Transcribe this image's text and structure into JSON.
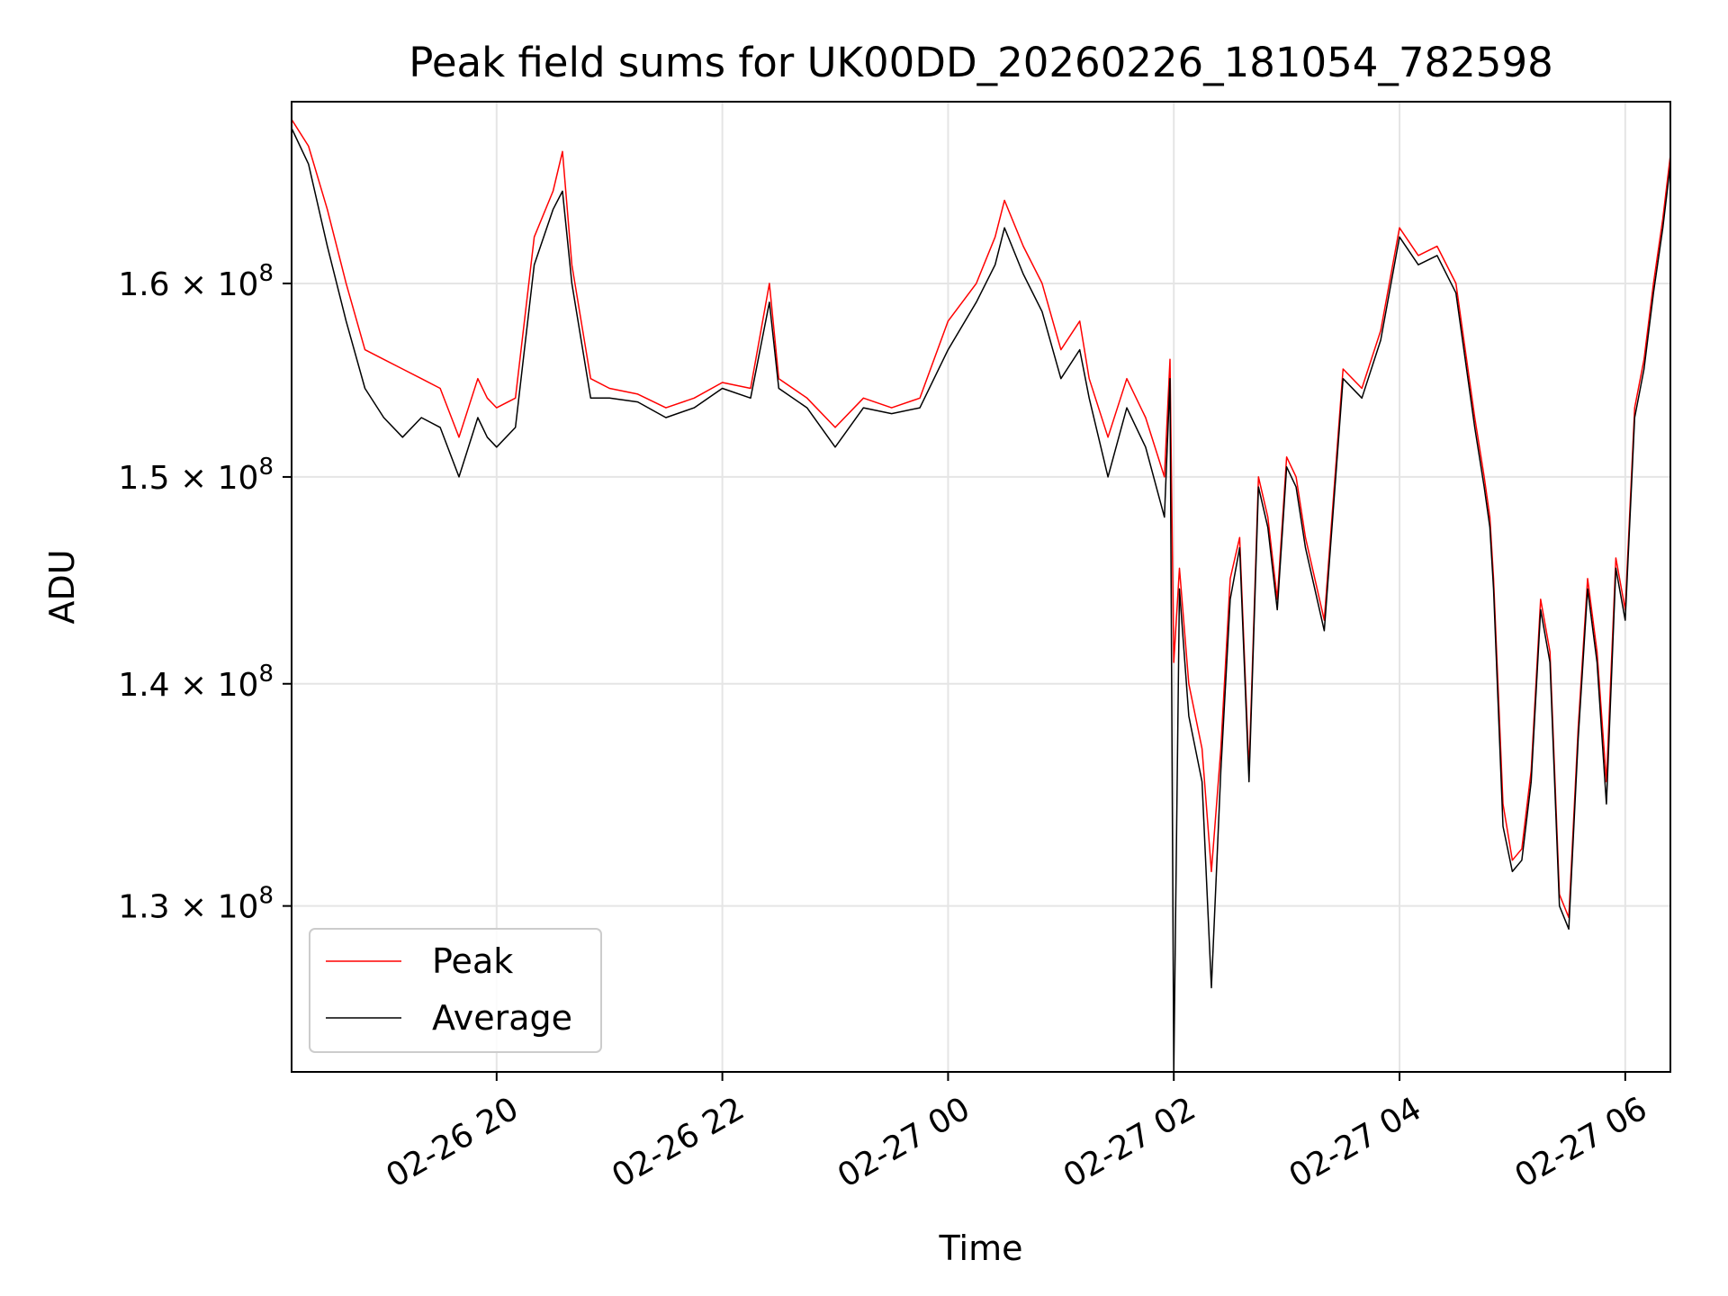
{
  "chart_data": {
    "type": "line",
    "title": "Peak field sums for UK00DD_20260226_181054_782598",
    "xlabel": "Time",
    "ylabel": "ADU",
    "y_scale": "log",
    "ylim": [
      123000000.0,
      170000000.0
    ],
    "xlim": [
      "2026-02-26 18:11",
      "2026-02-27 06:24"
    ],
    "x_ticks": [
      {
        "value": "2026-02-26 20:00",
        "label": "02-26 20"
      },
      {
        "value": "2026-02-26 22:00",
        "label": "02-26 22"
      },
      {
        "value": "2026-02-27 00:00",
        "label": "02-27 00"
      },
      {
        "value": "2026-02-27 02:00",
        "label": "02-27 02"
      },
      {
        "value": "2026-02-27 04:00",
        "label": "02-27 04"
      },
      {
        "value": "2026-02-27 06:00",
        "label": "02-27 06"
      }
    ],
    "y_ticks": [
      {
        "value": 130000000.0,
        "label_mantissa": "1.3",
        "label_exponent": "8"
      },
      {
        "value": 140000000.0,
        "label_mantissa": "1.4",
        "label_exponent": "8"
      },
      {
        "value": 150000000.0,
        "label_mantissa": "1.5",
        "label_exponent": "8"
      },
      {
        "value": 160000000.0,
        "label_mantissa": "1.6",
        "label_exponent": "8"
      }
    ],
    "grid": true,
    "legend_position": "lower-left",
    "series": [
      {
        "name": "Peak",
        "color": "#ff0000",
        "x": [
          "2026-02-26 18:11",
          "2026-02-26 18:20",
          "2026-02-26 18:30",
          "2026-02-26 18:40",
          "2026-02-26 18:50",
          "2026-02-26 19:00",
          "2026-02-26 19:10",
          "2026-02-26 19:20",
          "2026-02-26 19:30",
          "2026-02-26 19:40",
          "2026-02-26 19:50",
          "2026-02-26 19:55",
          "2026-02-26 20:00",
          "2026-02-26 20:10",
          "2026-02-26 20:20",
          "2026-02-26 20:30",
          "2026-02-26 20:35",
          "2026-02-26 20:40",
          "2026-02-26 20:50",
          "2026-02-26 21:00",
          "2026-02-26 21:15",
          "2026-02-26 21:30",
          "2026-02-26 21:45",
          "2026-02-26 22:00",
          "2026-02-26 22:15",
          "2026-02-26 22:25",
          "2026-02-26 22:30",
          "2026-02-26 22:45",
          "2026-02-26 23:00",
          "2026-02-26 23:15",
          "2026-02-26 23:30",
          "2026-02-26 23:45",
          "2026-02-27 00:00",
          "2026-02-27 00:15",
          "2026-02-27 00:25",
          "2026-02-27 00:30",
          "2026-02-27 00:40",
          "2026-02-27 00:50",
          "2026-02-27 01:00",
          "2026-02-27 01:10",
          "2026-02-27 01:15",
          "2026-02-27 01:25",
          "2026-02-27 01:35",
          "2026-02-27 01:45",
          "2026-02-27 01:55",
          "2026-02-27 01:58",
          "2026-02-27 02:00",
          "2026-02-27 02:03",
          "2026-02-27 02:08",
          "2026-02-27 02:15",
          "2026-02-27 02:20",
          "2026-02-27 02:25",
          "2026-02-27 02:30",
          "2026-02-27 02:35",
          "2026-02-27 02:40",
          "2026-02-27 02:45",
          "2026-02-27 02:50",
          "2026-02-27 02:55",
          "2026-02-27 03:00",
          "2026-02-27 03:05",
          "2026-02-27 03:10",
          "2026-02-27 03:20",
          "2026-02-27 03:30",
          "2026-02-27 03:40",
          "2026-02-27 03:50",
          "2026-02-27 04:00",
          "2026-02-27 04:10",
          "2026-02-27 04:20",
          "2026-02-27 04:30",
          "2026-02-27 04:40",
          "2026-02-27 04:45",
          "2026-02-27 04:48",
          "2026-02-27 04:50",
          "2026-02-27 04:55",
          "2026-02-27 05:00",
          "2026-02-27 05:05",
          "2026-02-27 05:10",
          "2026-02-27 05:15",
          "2026-02-27 05:20",
          "2026-02-27 05:25",
          "2026-02-27 05:30",
          "2026-02-27 05:35",
          "2026-02-27 05:40",
          "2026-02-27 05:45",
          "2026-02-27 05:50",
          "2026-02-27 05:55",
          "2026-02-27 06:00",
          "2026-02-27 06:05",
          "2026-02-27 06:10",
          "2026-02-27 06:15",
          "2026-02-27 06:20",
          "2026-02-27 06:24"
        ],
        "values": [
          169000000.0,
          167500000.0,
          164000000.0,
          160000000.0,
          156500000.0,
          156000000.0,
          155500000.0,
          155000000.0,
          154500000.0,
          152000000.0,
          155000000.0,
          154000000.0,
          153500000.0,
          154000000.0,
          162500000.0,
          165000000.0,
          167200000.0,
          161000000.0,
          155000000.0,
          154500000.0,
          154200000.0,
          153500000.0,
          154000000.0,
          154800000.0,
          154500000.0,
          160000000.0,
          155000000.0,
          154000000.0,
          152500000.0,
          154000000.0,
          153500000.0,
          154000000.0,
          158000000.0,
          160000000.0,
          162500000.0,
          164500000.0,
          162000000.0,
          160000000.0,
          156500000.0,
          158000000.0,
          155000000.0,
          152000000.0,
          155000000.0,
          153000000.0,
          150000000.0,
          156000000.0,
          141000000.0,
          145500000.0,
          140000000.0,
          137000000.0,
          131500000.0,
          137000000.0,
          145000000.0,
          147000000.0,
          136000000.0,
          150000000.0,
          148000000.0,
          144000000.0,
          151000000.0,
          150000000.0,
          147000000.0,
          143000000.0,
          155500000.0,
          154500000.0,
          157500000.0,
          163000000.0,
          161500000.0,
          162000000.0,
          160000000.0,
          153000000.0,
          150000000.0,
          148000000.0,
          145000000.0,
          134500000.0,
          132000000.0,
          132500000.0,
          136000000.0,
          144000000.0,
          141500000.0,
          130500000.0,
          129500000.0,
          138000000.0,
          145000000.0,
          141500000.0,
          135500000.0,
          146000000.0,
          143500000.0,
          153500000.0,
          156000000.0,
          160000000.0,
          163500000.0,
          167000000.0
        ]
      },
      {
        "name": "Average",
        "color": "#000000",
        "x": [
          "2026-02-26 18:11",
          "2026-02-26 18:20",
          "2026-02-26 18:30",
          "2026-02-26 18:40",
          "2026-02-26 18:50",
          "2026-02-26 19:00",
          "2026-02-26 19:10",
          "2026-02-26 19:20",
          "2026-02-26 19:30",
          "2026-02-26 19:40",
          "2026-02-26 19:50",
          "2026-02-26 19:55",
          "2026-02-26 20:00",
          "2026-02-26 20:10",
          "2026-02-26 20:20",
          "2026-02-26 20:30",
          "2026-02-26 20:35",
          "2026-02-26 20:40",
          "2026-02-26 20:50",
          "2026-02-26 21:00",
          "2026-02-26 21:15",
          "2026-02-26 21:30",
          "2026-02-26 21:45",
          "2026-02-26 22:00",
          "2026-02-26 22:15",
          "2026-02-26 22:25",
          "2026-02-26 22:30",
          "2026-02-26 22:45",
          "2026-02-26 23:00",
          "2026-02-26 23:15",
          "2026-02-26 23:30",
          "2026-02-26 23:45",
          "2026-02-27 00:00",
          "2026-02-27 00:15",
          "2026-02-27 00:25",
          "2026-02-27 00:30",
          "2026-02-27 00:40",
          "2026-02-27 00:50",
          "2026-02-27 01:00",
          "2026-02-27 01:10",
          "2026-02-27 01:15",
          "2026-02-27 01:25",
          "2026-02-27 01:35",
          "2026-02-27 01:45",
          "2026-02-27 01:55",
          "2026-02-27 01:58",
          "2026-02-27 02:00",
          "2026-02-27 02:03",
          "2026-02-27 02:08",
          "2026-02-27 02:15",
          "2026-02-27 02:20",
          "2026-02-27 02:25",
          "2026-02-27 02:30",
          "2026-02-27 02:35",
          "2026-02-27 02:40",
          "2026-02-27 02:45",
          "2026-02-27 02:50",
          "2026-02-27 02:55",
          "2026-02-27 03:00",
          "2026-02-27 03:05",
          "2026-02-27 03:10",
          "2026-02-27 03:20",
          "2026-02-27 03:30",
          "2026-02-27 03:40",
          "2026-02-27 03:50",
          "2026-02-27 04:00",
          "2026-02-27 04:10",
          "2026-02-27 04:20",
          "2026-02-27 04:30",
          "2026-02-27 04:40",
          "2026-02-27 04:45",
          "2026-02-27 04:48",
          "2026-02-27 04:50",
          "2026-02-27 04:55",
          "2026-02-27 05:00",
          "2026-02-27 05:05",
          "2026-02-27 05:10",
          "2026-02-27 05:15",
          "2026-02-27 05:20",
          "2026-02-27 05:25",
          "2026-02-27 05:30",
          "2026-02-27 05:35",
          "2026-02-27 05:40",
          "2026-02-27 05:45",
          "2026-02-27 05:50",
          "2026-02-27 05:55",
          "2026-02-27 06:00",
          "2026-02-27 06:05",
          "2026-02-27 06:10",
          "2026-02-27 06:15",
          "2026-02-27 06:20",
          "2026-02-27 06:24"
        ],
        "values": [
          168500000.0,
          166500000.0,
          162000000.0,
          158000000.0,
          154500000.0,
          153000000.0,
          152000000.0,
          153000000.0,
          152500000.0,
          150000000.0,
          153000000.0,
          152000000.0,
          151500000.0,
          152500000.0,
          161000000.0,
          164000000.0,
          165000000.0,
          160000000.0,
          154000000.0,
          154000000.0,
          153800000.0,
          153000000.0,
          153500000.0,
          154500000.0,
          154000000.0,
          159000000.0,
          154500000.0,
          153500000.0,
          151500000.0,
          153500000.0,
          153200000.0,
          153500000.0,
          156500000.0,
          159000000.0,
          161000000.0,
          163000000.0,
          160500000.0,
          158500000.0,
          155000000.0,
          156500000.0,
          154000000.0,
          150000000.0,
          153500000.0,
          151500000.0,
          148000000.0,
          155000000.0,
          123000000.0,
          144500000.0,
          138500000.0,
          135500000.0,
          126500000.0,
          136000000.0,
          144000000.0,
          146500000.0,
          135500000.0,
          149500000.0,
          147500000.0,
          143500000.0,
          150500000.0,
          149500000.0,
          146500000.0,
          142500000.0,
          155000000.0,
          154000000.0,
          157000000.0,
          162500000.0,
          161000000.0,
          161500000.0,
          159500000.0,
          152500000.0,
          149500000.0,
          147500000.0,
          144500000.0,
          133500000.0,
          131500000.0,
          132000000.0,
          135500000.0,
          143500000.0,
          141000000.0,
          130000000.0,
          129000000.0,
          137500000.0,
          144500000.0,
          141000000.0,
          134500000.0,
          145500000.0,
          143000000.0,
          153000000.0,
          155500000.0,
          159500000.0,
          163000000.0,
          166500000.0
        ]
      }
    ]
  }
}
